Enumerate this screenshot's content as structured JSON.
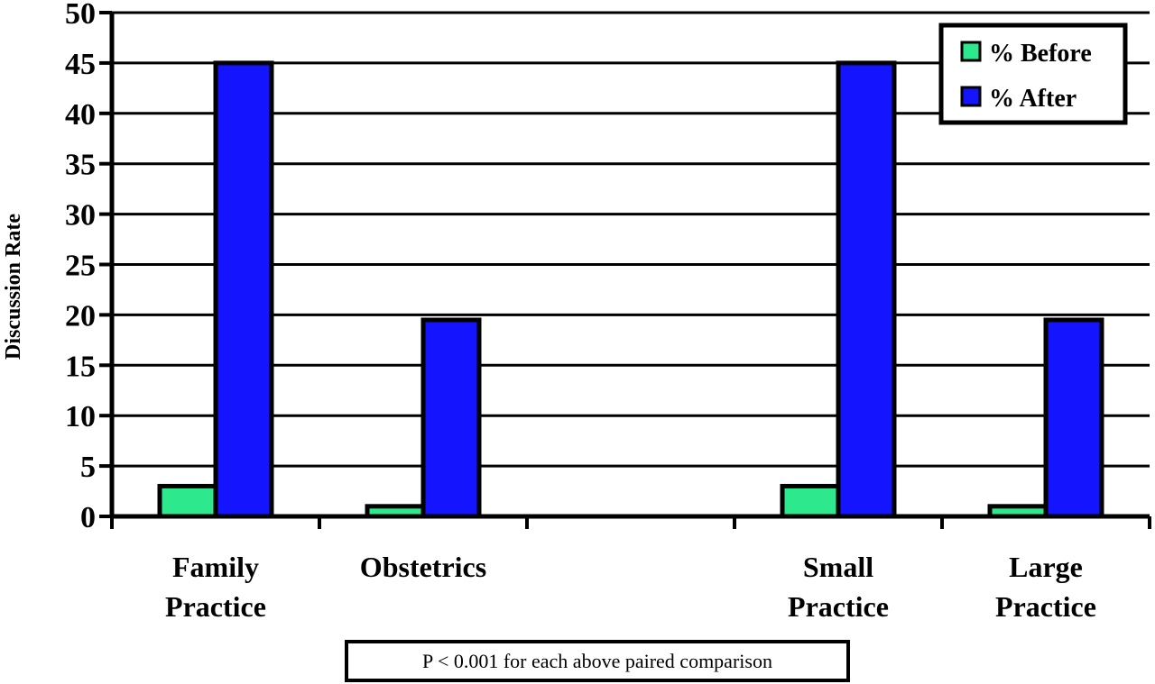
{
  "chart_data": {
    "type": "bar",
    "categories": [
      [
        "Family",
        "Practice"
      ],
      [
        "Obstetrics"
      ],
      [],
      [
        "Small",
        "Practice"
      ],
      [
        "Large",
        "Practice"
      ]
    ],
    "series": [
      {
        "name": "% Before",
        "values": [
          3,
          1,
          null,
          3,
          1
        ],
        "color": "#2ee88e"
      },
      {
        "name": "% After",
        "values": [
          45,
          19.5,
          null,
          45,
          19.5
        ],
        "color": "#1414ff"
      }
    ],
    "ylabel": "Discussion Rate",
    "ylim": [
      0,
      50
    ],
    "yticks": [
      0,
      5,
      10,
      15,
      20,
      25,
      30,
      35,
      40,
      45,
      50
    ],
    "grid": true,
    "legend_position": "top-right",
    "annotation": "P < 0.001 for each above paired comparison"
  }
}
